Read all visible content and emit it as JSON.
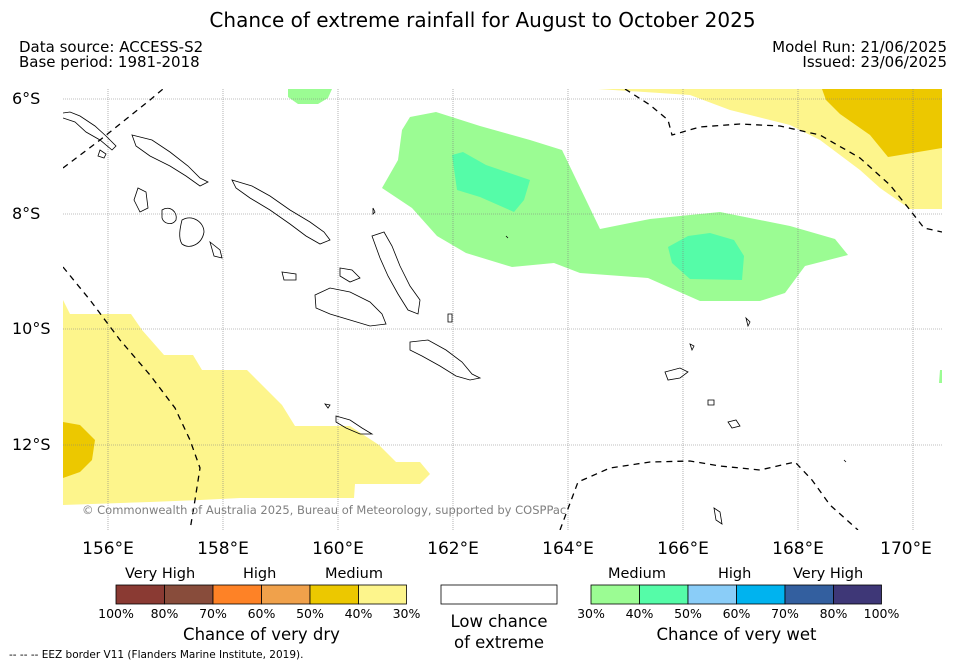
{
  "title": "Chance of extreme rainfall for August to October 2025",
  "meta": {
    "data_source": "Data source: ACCESS-S2",
    "base_period": "Base period: 1981-2018",
    "model_run": "Model Run: 21/06/2025",
    "issued": "Issued: 23/06/2025"
  },
  "map": {
    "lat_labels": [
      "6°S",
      "8°S",
      "10°S",
      "12°S"
    ],
    "lon_labels": [
      "156°E",
      "158°E",
      "160°E",
      "162°E",
      "164°E",
      "166°E",
      "168°E",
      "170°E"
    ],
    "copyright": "© Commonwealth of Australia 2025, Bureau of Meteorology, supported by COSPPac",
    "colors": {
      "dry_medium": "#fdf58c",
      "dry_high": "#ecc800",
      "wet_medium": "#9bfc93",
      "wet_high": "#55fca8",
      "land_outline": "#000000"
    }
  },
  "legend": {
    "dry": {
      "headers": [
        "Very High",
        "High",
        "Medium"
      ],
      "ticks": [
        "100%",
        "80%",
        "70%",
        "60%",
        "50%",
        "40%",
        "30%"
      ],
      "title": "Chance of very dry",
      "colors": [
        "#8a3a33",
        "#884c3b",
        "#fe8226",
        "#f0a14b",
        "#ecc800",
        "#fdf58c"
      ]
    },
    "low": {
      "line1": "Low chance",
      "line2": "of extreme",
      "color": "#ffffff"
    },
    "wet": {
      "headers": [
        "Medium",
        "High",
        "Very High"
      ],
      "ticks": [
        "30%",
        "40%",
        "50%",
        "60%",
        "70%",
        "80%",
        "100%"
      ],
      "title": "Chance of very wet",
      "colors": [
        "#9bfc93",
        "#55fca8",
        "#8acdf8",
        "#00b3ef",
        "#335f9f",
        "#3e3777"
      ]
    }
  },
  "footer": {
    "eez": "--  --  -- EEZ border V11 (Flanders Marine Institute, 2019)."
  }
}
